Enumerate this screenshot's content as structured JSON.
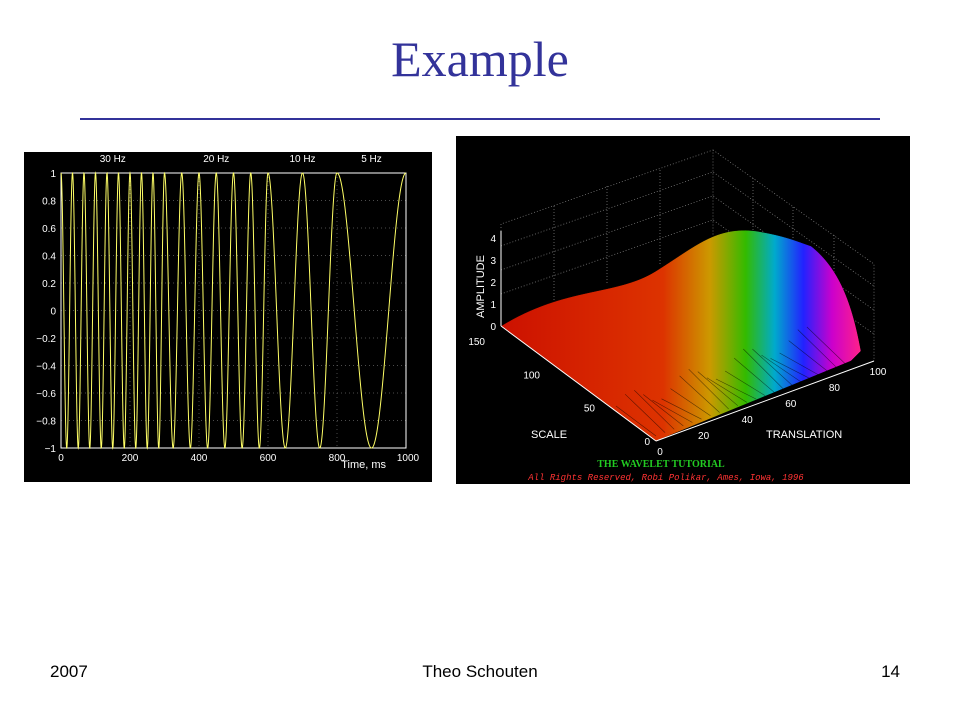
{
  "slide": {
    "title": "Example",
    "footer_left": "2007",
    "footer_center": "Theo Schouten",
    "footer_right": "14"
  },
  "colors": {
    "title": "#33339a",
    "plot_background": "#000000",
    "signal": "#ffff66",
    "axis_text": "#ffffff",
    "credit_title": "#22cc22",
    "credit_line": "#ff3333"
  },
  "chart_data": [
    {
      "type": "line",
      "title": "",
      "top_labels": [
        "30 Hz",
        "20 Hz",
        "10 Hz",
        "5 Hz"
      ],
      "xlabel": "Time, ms",
      "ylabel": "",
      "xlim": [
        0,
        1000
      ],
      "ylim": [
        -1,
        1
      ],
      "x_ticks": [
        "0",
        "200",
        "400",
        "600",
        "800",
        "1000"
      ],
      "y_ticks": [
        "1",
        "0.8",
        "0.6",
        "0.4",
        "0.2",
        "0",
        "−0.2",
        "−0.4",
        "−0.6",
        "−0.8",
        "−1"
      ],
      "grid": true,
      "series": [
        {
          "segments": [
            {
              "x_start": 0,
              "x_end": 300,
              "frequency_hz": 30
            },
            {
              "x_start": 300,
              "x_end": 600,
              "frequency_hz": 20
            },
            {
              "x_start": 600,
              "x_end": 800,
              "frequency_hz": 10
            },
            {
              "x_start": 800,
              "x_end": 1000,
              "frequency_hz": 5
            }
          ]
        }
      ]
    },
    {
      "type": "surface",
      "xlabel": "TRANSLATION",
      "ylabel": "SCALE",
      "zlabel": "AMPLITUDE",
      "translation_ticks": [
        "0",
        "20",
        "40",
        "60",
        "80",
        "100"
      ],
      "scale_ticks": [
        "0",
        "50",
        "100",
        "150"
      ],
      "amplitude_ticks": [
        "0",
        "1",
        "2",
        "3",
        "4"
      ],
      "credit_title": "THE WAVELET TUTORIAL",
      "credit_line": "All Rights Reserved, Robi Polikar, Ames, Iowa, 1996"
    }
  ]
}
